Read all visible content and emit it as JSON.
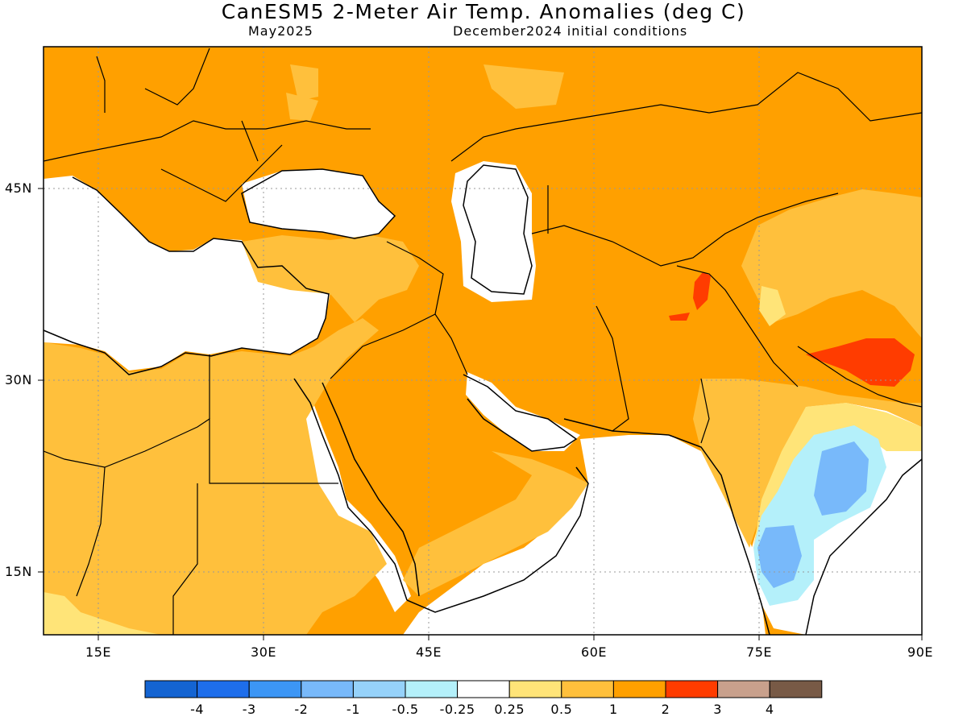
{
  "header": {
    "title": "CanESM5 2-Meter Air Temp. Anomalies (deg C)",
    "valid_month": "May2025",
    "init": "December2024 initial conditions"
  },
  "axes": {
    "lat_labels": [
      "45N",
      "30N",
      "15N"
    ],
    "lon_labels": [
      "15E",
      "30E",
      "45E",
      "60E",
      "75E",
      "90E"
    ],
    "lon_range": [
      10,
      90
    ],
    "lat_range": [
      10,
      55
    ]
  },
  "legend": {
    "labels": [
      "-4",
      "-3",
      "-2",
      "-1",
      "-0.5",
      "-0.25",
      "0.25",
      "0.5",
      "1",
      "2",
      "3",
      "4"
    ],
    "colors": [
      "#1464d2",
      "#1e6eeb",
      "#3c96f5",
      "#78b9fa",
      "#96d2fa",
      "#b4f0fa",
      "#ffffff",
      "#ffe478",
      "#ffc03c",
      "#ffa000",
      "#ff3c00",
      "#c8a08c",
      "#785a46"
    ]
  },
  "map_colors": {
    "land_border": "#000000",
    "grid": "#999999"
  }
}
